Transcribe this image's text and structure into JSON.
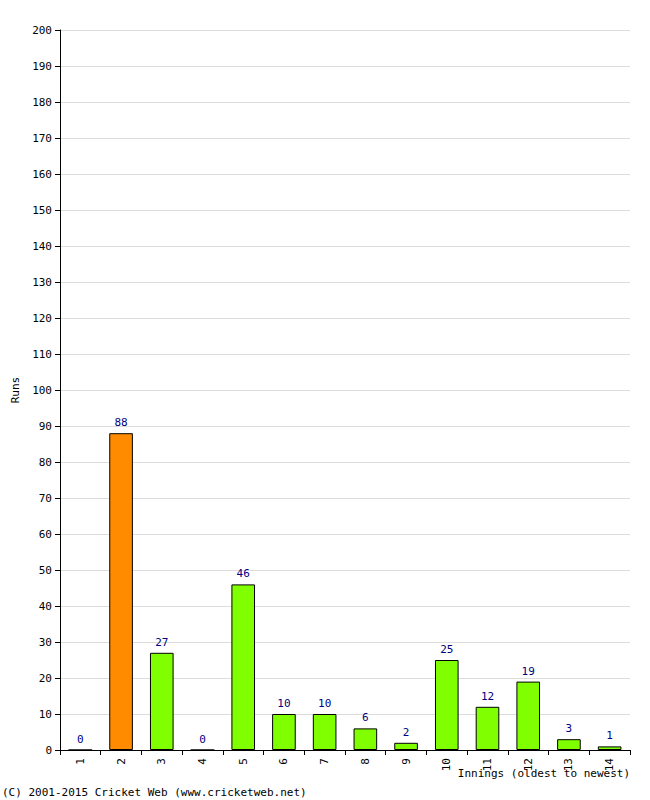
{
  "chart_data": {
    "type": "bar",
    "x_label": "Innings (oldest to newest)",
    "y_label": "Runs",
    "annotations": [
      "(C) 2001-2015 Cricket Web (www.cricketweb.net)"
    ],
    "categories": [
      "1",
      "2",
      "3",
      "4",
      "5",
      "6",
      "7",
      "8",
      "9",
      "10",
      "11",
      "12",
      "13",
      "14"
    ],
    "values": [
      0,
      88,
      27,
      0,
      46,
      10,
      10,
      6,
      2,
      25,
      12,
      19,
      3,
      1
    ],
    "colors": [
      "#80ff00",
      "#ff8c00",
      "#80ff00",
      "#80ff00",
      "#80ff00",
      "#80ff00",
      "#80ff00",
      "#80ff00",
      "#80ff00",
      "#80ff00",
      "#80ff00",
      "#80ff00",
      "#80ff00",
      "#80ff00"
    ],
    "ylim": [
      0,
      200
    ],
    "yticks": [
      0,
      10,
      20,
      30,
      40,
      50,
      60,
      70,
      80,
      90,
      100,
      110,
      120,
      130,
      140,
      150,
      160,
      170,
      180,
      190,
      200
    ],
    "grid": true,
    "data_labels": true
  }
}
